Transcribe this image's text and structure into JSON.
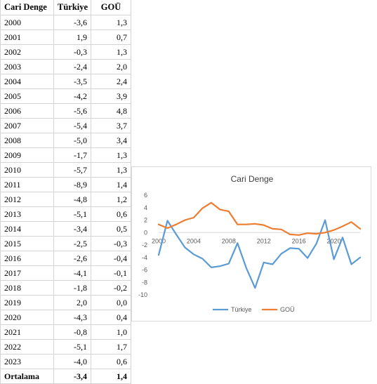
{
  "table": {
    "headers": [
      "Cari Denge",
      "Türkiye",
      "GOÜ"
    ],
    "rows": [
      [
        "2000",
        "-3,6",
        "1,3"
      ],
      [
        "2001",
        "1,9",
        "0,7"
      ],
      [
        "2002",
        "-0,3",
        "1,3"
      ],
      [
        "2003",
        "-2,4",
        "2,0"
      ],
      [
        "2004",
        "-3,5",
        "2,4"
      ],
      [
        "2005",
        "-4,2",
        "3,9"
      ],
      [
        "2006",
        "-5,6",
        "4,8"
      ],
      [
        "2007",
        "-5,4",
        "3,7"
      ],
      [
        "2008",
        "-5,0",
        "3,4"
      ],
      [
        "2009",
        "-1,7",
        "1,3"
      ],
      [
        "2010",
        "-5,7",
        "1,3"
      ],
      [
        "2011",
        "-8,9",
        "1,4"
      ],
      [
        "2012",
        "-4,8",
        "1,2"
      ],
      [
        "2013",
        "-5,1",
        "0,6"
      ],
      [
        "2014",
        "-3,4",
        "0,5"
      ],
      [
        "2015",
        "-2,5",
        "-0,3"
      ],
      [
        "2016",
        "-2,6",
        "-0,4"
      ],
      [
        "2017",
        "-4,1",
        "-0,1"
      ],
      [
        "2018",
        "-1,8",
        "-0,2"
      ],
      [
        "2019",
        "2,0",
        "0,0"
      ],
      [
        "2020",
        "-4,3",
        "0,4"
      ],
      [
        "2021",
        "-0,8",
        "1,0"
      ],
      [
        "2022",
        "-5,1",
        "1,7"
      ],
      [
        "2023",
        "-4,0",
        "0,6"
      ]
    ],
    "average": [
      "Ortalama",
      "-3,4",
      "1,4"
    ]
  },
  "chart_data": {
    "type": "line",
    "title": "Cari Denge",
    "x": [
      2000,
      2001,
      2002,
      2003,
      2004,
      2005,
      2006,
      2007,
      2008,
      2009,
      2010,
      2011,
      2012,
      2013,
      2014,
      2015,
      2016,
      2017,
      2018,
      2019,
      2020,
      2021,
      2022,
      2023
    ],
    "series": [
      {
        "name": "Türkiye",
        "color": "#5b9bd5",
        "values": [
          -3.6,
          1.9,
          -0.3,
          -2.4,
          -3.5,
          -4.2,
          -5.6,
          -5.4,
          -5.0,
          -1.7,
          -5.7,
          -8.9,
          -4.8,
          -5.1,
          -3.4,
          -2.5,
          -2.6,
          -4.1,
          -1.8,
          2.0,
          -4.3,
          -0.8,
          -5.1,
          -4.0
        ]
      },
      {
        "name": "GOÜ",
        "color": "#ed7d31",
        "values": [
          1.3,
          0.7,
          1.3,
          2.0,
          2.4,
          3.9,
          4.8,
          3.7,
          3.4,
          1.3,
          1.3,
          1.4,
          1.2,
          0.6,
          0.5,
          -0.3,
          -0.4,
          -0.1,
          -0.2,
          0.0,
          0.4,
          1.0,
          1.7,
          0.6
        ]
      }
    ],
    "ylim": [
      -10,
      6
    ],
    "yticks": [
      -10,
      -8,
      -6,
      -4,
      -2,
      0,
      2,
      4,
      6
    ],
    "xtick_labels": [
      "2000",
      "2004",
      "2008",
      "2012",
      "2016",
      "2020"
    ],
    "xlabel": "",
    "ylabel": "",
    "grid": false,
    "legend": "bottom"
  }
}
